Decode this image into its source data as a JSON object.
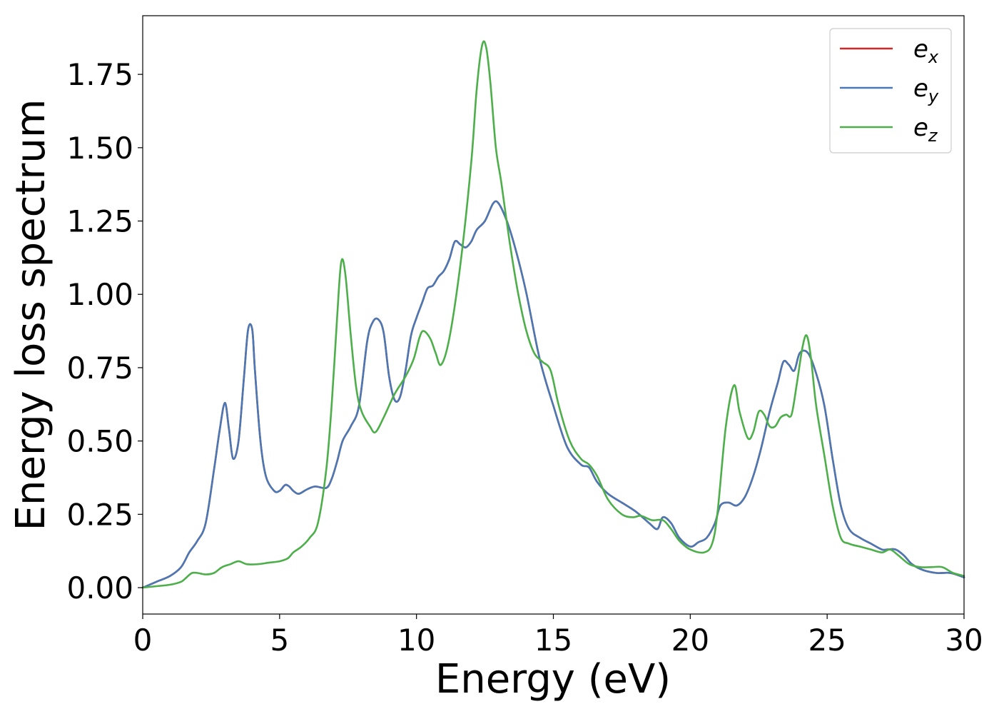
{
  "chart_data": {
    "type": "line",
    "xlabel": "Energy (eV)",
    "ylabel": "Energy loss spectrum",
    "xlim": [
      0,
      30
    ],
    "ylim": [
      -0.09,
      1.95
    ],
    "xticks": [
      0,
      5,
      10,
      15,
      20,
      25,
      30
    ],
    "xtick_labels": [
      "0",
      "5",
      "10",
      "15",
      "20",
      "25",
      "30"
    ],
    "yticks": [
      0.0,
      0.25,
      0.5,
      0.75,
      1.0,
      1.25,
      1.5,
      1.75
    ],
    "ytick_labels": [
      "0.00",
      "0.25",
      "0.50",
      "0.75",
      "1.00",
      "1.25",
      "1.50",
      "1.75"
    ],
    "grid": false,
    "legend_position": "top-right",
    "series": [
      {
        "name_base": "e",
        "name_sub": "x",
        "color": "#d62728",
        "x": [
          0,
          0.5,
          1.0,
          1.4,
          1.7,
          2.0,
          2.3,
          2.6,
          2.8,
          3.0,
          3.15,
          3.3,
          3.5,
          3.7,
          3.85,
          4.0,
          4.1,
          4.3,
          4.5,
          4.8,
          5.0,
          5.2,
          5.35,
          5.5,
          5.7,
          6.0,
          6.3,
          6.7,
          6.9,
          7.1,
          7.3,
          7.6,
          7.9,
          8.2,
          8.4,
          8.6,
          8.8,
          9.0,
          9.2,
          9.4,
          9.6,
          9.8,
          10.0,
          10.2,
          10.4,
          10.6,
          10.8,
          11.0,
          11.2,
          11.4,
          11.6,
          11.8,
          12.0,
          12.2,
          12.5,
          12.8,
          13.0,
          13.3,
          13.6,
          14.0,
          14.5,
          15.0,
          15.5,
          16.0,
          16.3,
          16.6,
          17.0,
          17.5,
          18.0,
          18.5,
          18.8,
          19.0,
          19.3,
          19.6,
          20.0,
          20.3,
          20.6,
          20.9,
          21.1,
          21.4,
          21.7,
          22.0,
          22.3,
          22.6,
          22.9,
          23.2,
          23.4,
          23.6,
          23.8,
          24.0,
          24.3,
          24.6,
          24.9,
          25.2,
          25.5,
          25.8,
          26.2,
          26.6,
          27.0,
          27.2,
          27.5,
          27.8,
          28.1,
          28.5,
          29.0,
          29.5,
          30.0
        ],
        "y": [
          0.0,
          0.02,
          0.04,
          0.07,
          0.12,
          0.16,
          0.22,
          0.4,
          0.53,
          0.63,
          0.54,
          0.44,
          0.5,
          0.72,
          0.88,
          0.88,
          0.74,
          0.5,
          0.38,
          0.33,
          0.33,
          0.35,
          0.345,
          0.33,
          0.32,
          0.335,
          0.345,
          0.34,
          0.37,
          0.43,
          0.5,
          0.55,
          0.62,
          0.84,
          0.905,
          0.915,
          0.87,
          0.72,
          0.64,
          0.65,
          0.74,
          0.86,
          0.92,
          0.97,
          1.02,
          1.03,
          1.06,
          1.08,
          1.12,
          1.18,
          1.17,
          1.16,
          1.18,
          1.22,
          1.25,
          1.31,
          1.31,
          1.25,
          1.16,
          1.01,
          0.78,
          0.62,
          0.48,
          0.42,
          0.41,
          0.36,
          0.32,
          0.29,
          0.26,
          0.22,
          0.2,
          0.24,
          0.22,
          0.17,
          0.14,
          0.155,
          0.17,
          0.22,
          0.28,
          0.29,
          0.28,
          0.31,
          0.38,
          0.48,
          0.6,
          0.7,
          0.77,
          0.76,
          0.74,
          0.8,
          0.8,
          0.73,
          0.62,
          0.44,
          0.28,
          0.2,
          0.17,
          0.15,
          0.13,
          0.13,
          0.13,
          0.11,
          0.08,
          0.06,
          0.05,
          0.05,
          0.035
        ]
      },
      {
        "name_base": "e",
        "name_sub": "y",
        "color": "#4a78b4",
        "x": [
          0,
          0.5,
          1.0,
          1.4,
          1.7,
          2.0,
          2.3,
          2.6,
          2.8,
          3.0,
          3.15,
          3.3,
          3.5,
          3.7,
          3.85,
          4.0,
          4.1,
          4.3,
          4.5,
          4.8,
          5.0,
          5.2,
          5.35,
          5.5,
          5.7,
          6.0,
          6.3,
          6.7,
          6.9,
          7.1,
          7.3,
          7.6,
          7.9,
          8.2,
          8.4,
          8.6,
          8.8,
          9.0,
          9.2,
          9.4,
          9.6,
          9.8,
          10.0,
          10.2,
          10.4,
          10.6,
          10.8,
          11.0,
          11.2,
          11.4,
          11.6,
          11.8,
          12.0,
          12.2,
          12.5,
          12.8,
          13.0,
          13.3,
          13.6,
          14.0,
          14.5,
          15.0,
          15.5,
          16.0,
          16.3,
          16.6,
          17.0,
          17.5,
          18.0,
          18.5,
          18.8,
          19.0,
          19.3,
          19.6,
          20.0,
          20.3,
          20.6,
          20.9,
          21.1,
          21.4,
          21.7,
          22.0,
          22.3,
          22.6,
          22.9,
          23.2,
          23.4,
          23.6,
          23.8,
          24.0,
          24.3,
          24.6,
          24.9,
          25.2,
          25.5,
          25.8,
          26.2,
          26.6,
          27.0,
          27.2,
          27.5,
          27.8,
          28.1,
          28.5,
          29.0,
          29.5,
          30.0
        ],
        "y": [
          0.0,
          0.02,
          0.04,
          0.07,
          0.12,
          0.16,
          0.22,
          0.4,
          0.53,
          0.63,
          0.54,
          0.44,
          0.5,
          0.72,
          0.88,
          0.88,
          0.74,
          0.5,
          0.38,
          0.33,
          0.33,
          0.35,
          0.345,
          0.33,
          0.32,
          0.335,
          0.345,
          0.34,
          0.37,
          0.43,
          0.5,
          0.55,
          0.62,
          0.84,
          0.905,
          0.915,
          0.87,
          0.72,
          0.64,
          0.65,
          0.74,
          0.86,
          0.92,
          0.97,
          1.02,
          1.03,
          1.06,
          1.08,
          1.12,
          1.18,
          1.17,
          1.16,
          1.18,
          1.22,
          1.25,
          1.31,
          1.31,
          1.25,
          1.16,
          1.01,
          0.78,
          0.62,
          0.48,
          0.42,
          0.41,
          0.36,
          0.32,
          0.29,
          0.26,
          0.22,
          0.2,
          0.24,
          0.22,
          0.17,
          0.14,
          0.155,
          0.17,
          0.22,
          0.28,
          0.29,
          0.28,
          0.31,
          0.38,
          0.48,
          0.6,
          0.7,
          0.77,
          0.76,
          0.74,
          0.8,
          0.8,
          0.73,
          0.62,
          0.44,
          0.28,
          0.2,
          0.17,
          0.15,
          0.13,
          0.13,
          0.13,
          0.11,
          0.08,
          0.06,
          0.05,
          0.05,
          0.035
        ]
      },
      {
        "name_base": "e",
        "name_sub": "z",
        "color": "#4daf4a",
        "x": [
          0,
          0.5,
          1.0,
          1.4,
          1.6,
          1.8,
          2.0,
          2.3,
          2.6,
          2.9,
          3.2,
          3.5,
          3.8,
          4.2,
          4.6,
          5.0,
          5.3,
          5.5,
          5.8,
          6.1,
          6.4,
          6.7,
          6.9,
          7.1,
          7.25,
          7.4,
          7.6,
          7.8,
          8.0,
          8.3,
          8.5,
          8.8,
          9.2,
          9.6,
          9.9,
          10.1,
          10.25,
          10.5,
          10.7,
          10.9,
          11.2,
          11.6,
          12.0,
          12.2,
          12.4,
          12.55,
          12.7,
          12.9,
          13.1,
          13.4,
          13.7,
          14.0,
          14.3,
          14.6,
          14.9,
          15.2,
          15.6,
          16.0,
          16.3,
          16.6,
          17.0,
          17.5,
          17.9,
          18.2,
          18.6,
          19.0,
          19.3,
          19.6,
          20.0,
          20.5,
          20.8,
          21.0,
          21.3,
          21.6,
          21.8,
          22.1,
          22.3,
          22.5,
          22.7,
          22.9,
          23.1,
          23.3,
          23.5,
          23.7,
          23.9,
          24.1,
          24.25,
          24.4,
          24.6,
          24.9,
          25.2,
          25.5,
          25.8,
          26.2,
          26.6,
          27.0,
          27.3,
          27.6,
          28.0,
          28.4,
          28.8,
          29.2,
          29.6,
          30.0
        ],
        "y": [
          0.0,
          0.005,
          0.01,
          0.02,
          0.035,
          0.05,
          0.05,
          0.045,
          0.05,
          0.07,
          0.08,
          0.09,
          0.08,
          0.08,
          0.085,
          0.09,
          0.1,
          0.12,
          0.14,
          0.17,
          0.22,
          0.4,
          0.62,
          0.92,
          1.11,
          1.07,
          0.86,
          0.68,
          0.6,
          0.55,
          0.53,
          0.58,
          0.66,
          0.72,
          0.78,
          0.85,
          0.875,
          0.85,
          0.8,
          0.76,
          0.85,
          1.1,
          1.45,
          1.7,
          1.85,
          1.84,
          1.72,
          1.5,
          1.38,
          1.18,
          1.01,
          0.88,
          0.8,
          0.77,
          0.74,
          0.62,
          0.5,
          0.44,
          0.42,
          0.38,
          0.3,
          0.25,
          0.24,
          0.245,
          0.23,
          0.23,
          0.2,
          0.16,
          0.13,
          0.12,
          0.15,
          0.26,
          0.55,
          0.69,
          0.6,
          0.51,
          0.53,
          0.6,
          0.59,
          0.55,
          0.55,
          0.58,
          0.59,
          0.59,
          0.7,
          0.82,
          0.86,
          0.79,
          0.62,
          0.45,
          0.28,
          0.17,
          0.15,
          0.14,
          0.13,
          0.12,
          0.13,
          0.11,
          0.08,
          0.07,
          0.07,
          0.07,
          0.05,
          0.04
        ]
      }
    ]
  }
}
